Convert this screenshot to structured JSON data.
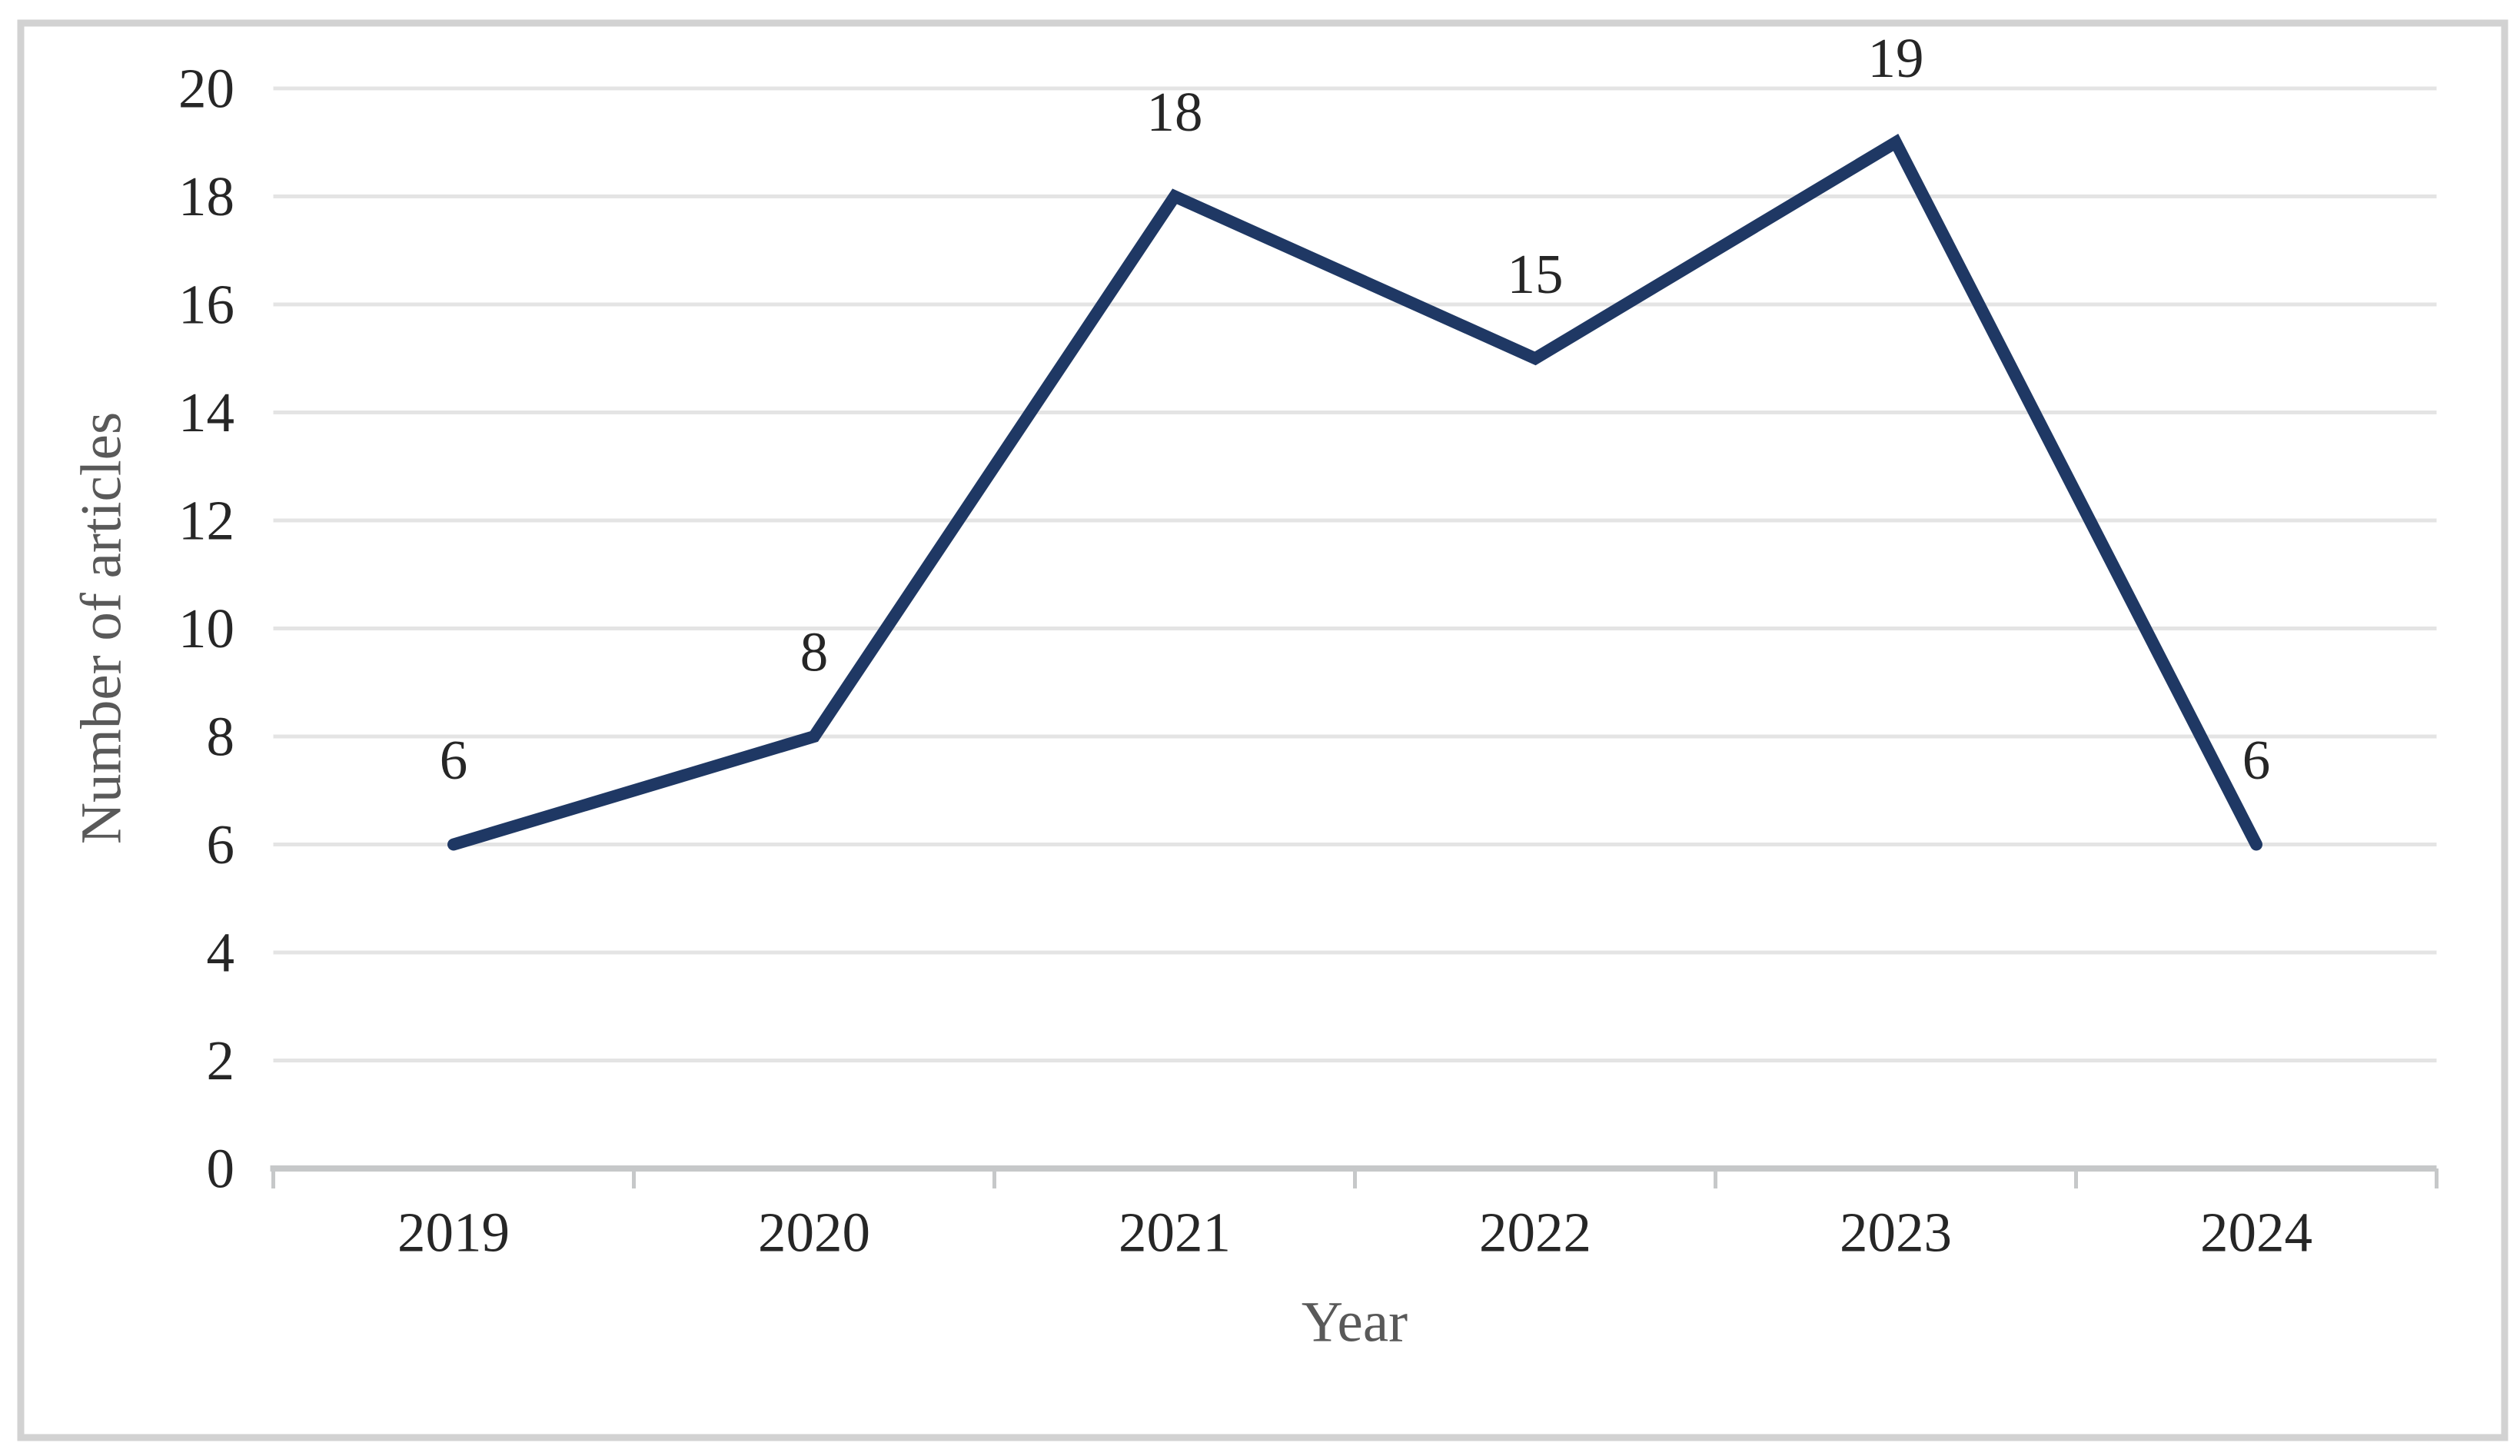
{
  "chart_data": {
    "type": "line",
    "title": "",
    "categories": [
      "2019",
      "2020",
      "2021",
      "2022",
      "2023",
      "2024"
    ],
    "series": [
      {
        "name": "Number of articles",
        "values": [
          6,
          8,
          18,
          15,
          19,
          6
        ],
        "data_labels": [
          "6",
          "8",
          "18",
          "15",
          "19",
          "6"
        ],
        "color": "#1f3864"
      }
    ],
    "xlabel": "Year",
    "ylabel": "Number of articles",
    "ylim": [
      0,
      20
    ],
    "y_ticks": [
      0,
      2,
      4,
      6,
      8,
      10,
      12,
      14,
      16,
      18,
      20
    ],
    "grid": true,
    "legend_position": "none",
    "marker": "none"
  },
  "styles": {
    "line_color": "#1f3864",
    "gridline_color": "#e4e4e4",
    "axis_line_color": "#c6c8c9",
    "tick_mark_color": "#c6c8c9",
    "tick_label_color": "#262626",
    "data_label_color": "#262626",
    "axis_title_color": "#595959",
    "border_color": "#d2d2d2",
    "background_color": "#ffffff"
  }
}
